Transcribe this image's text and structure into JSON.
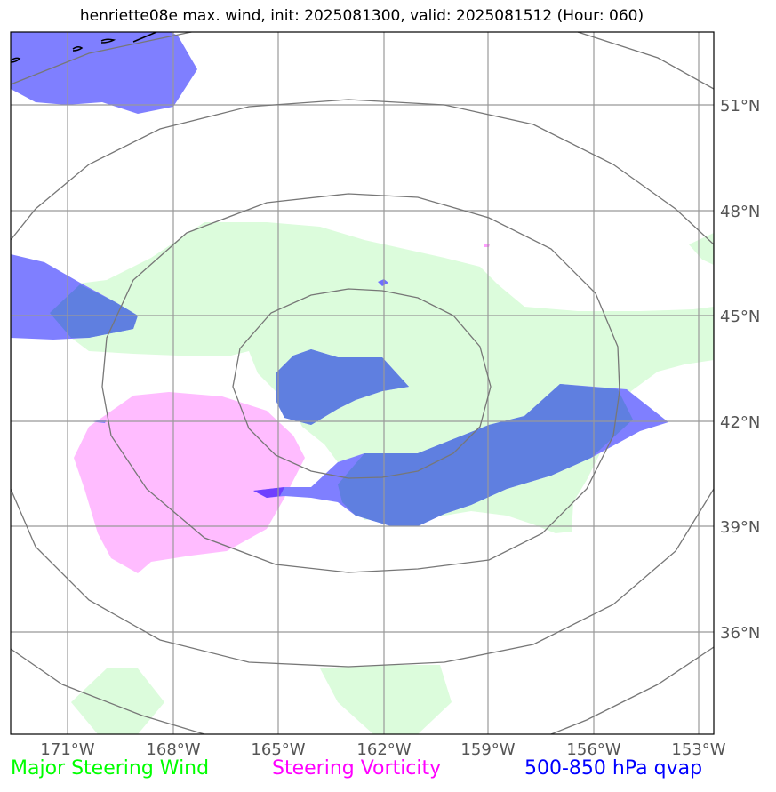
{
  "title": "henriette08e max. wind, init: 2025081300, valid: 2025081512 (Hour: 060)",
  "lat_labels": [
    "51°N",
    "48°N",
    "45°N",
    "42°N",
    "39°N",
    "36°N"
  ],
  "lon_labels": [
    "171°W",
    "168°W",
    "165°W",
    "162°W",
    "159°W",
    "156°W",
    "153°W"
  ],
  "legend": {
    "wind": "Major Steering Wind",
    "vorticity": "Steering Vorticity",
    "qvap": "500-850 hPa qvap"
  },
  "colors": {
    "wind": "#00ff00",
    "vorticity": "#ff00ff",
    "qvap": "#0000ff",
    "wind_fill": "#dcfcdc",
    "vort_fill": "#ffbcff",
    "qvap_fill": "#7f7fff",
    "overlap_fill": "#5f7fe0"
  }
}
